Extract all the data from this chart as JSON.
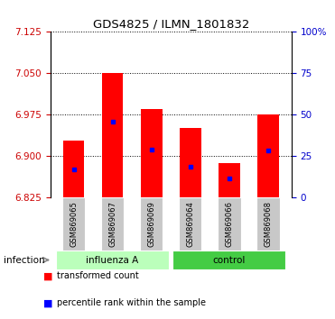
{
  "title": "GDS4825 / ILMN_1801832",
  "samples": [
    "GSM869065",
    "GSM869067",
    "GSM869069",
    "GSM869064",
    "GSM869066",
    "GSM869068"
  ],
  "groups": [
    "influenza A",
    "influenza A",
    "influenza A",
    "control",
    "control",
    "control"
  ],
  "bar_baseline": 6.825,
  "red_tops": [
    6.928,
    7.051,
    6.985,
    6.952,
    6.888,
    6.975
  ],
  "blue_values": [
    6.877,
    6.963,
    6.912,
    6.882,
    6.86,
    6.91
  ],
  "left_ylim": [
    6.825,
    7.125
  ],
  "left_yticks": [
    6.825,
    6.9,
    6.975,
    7.05,
    7.125
  ],
  "right_ylim": [
    0,
    100
  ],
  "right_yticks": [
    0,
    25,
    50,
    75,
    100
  ],
  "right_yticklabels": [
    "0",
    "25",
    "50",
    "75",
    "100%"
  ],
  "left_color": "#CC0000",
  "right_color": "#0000CC",
  "bar_width": 0.55,
  "sample_bg": "#C8C8C8",
  "group_colors": {
    "influenza A": "#BBFFBB",
    "control": "#44CC44"
  },
  "infection_label": "infection",
  "legend_red_label": "transformed count",
  "legend_blue_label": "percentile rank within the sample"
}
